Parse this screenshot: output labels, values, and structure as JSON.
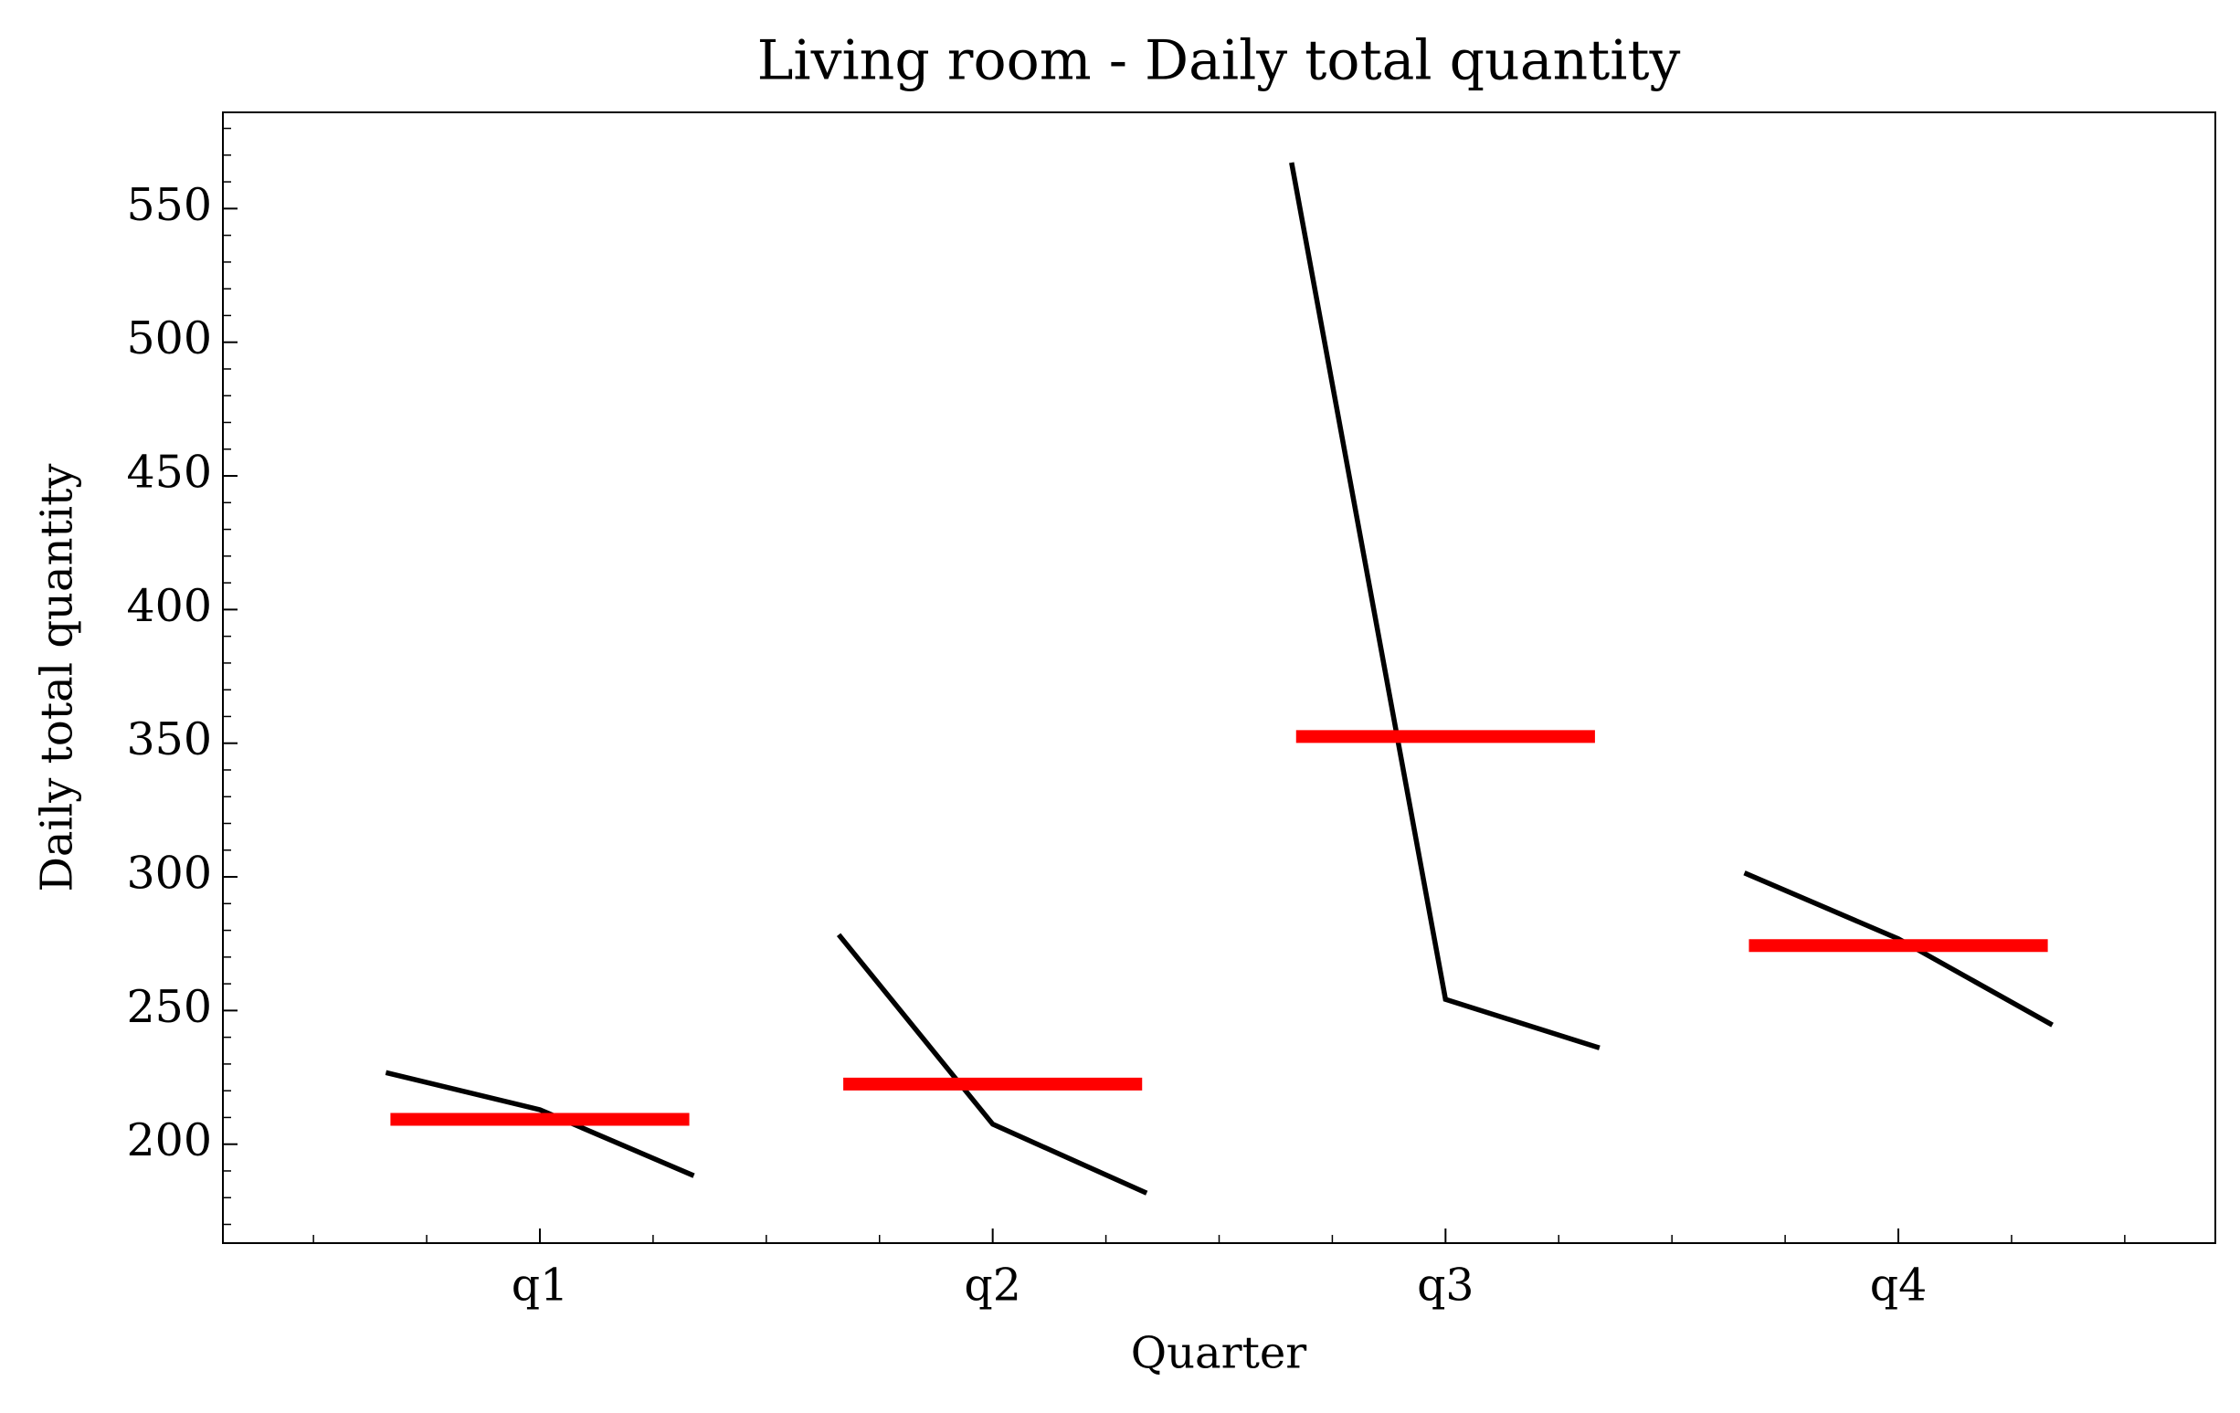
{
  "chart_data": {
    "type": "seasonal",
    "title": "Living room - Daily total quantity",
    "xlabel": "Quarter",
    "ylabel": "Daily total quantity",
    "categories": [
      "q1",
      "q2",
      "q3",
      "q4"
    ],
    "values": [
      [
        226.8,
        212.9,
        188.2
      ],
      [
        278.4,
        207.5,
        181.7
      ],
      [
        567.2,
        254.2,
        236.0
      ],
      [
        301.5,
        276.8,
        244.6
      ]
    ],
    "means": [
      209.3,
      222.5,
      352.5,
      274.3
    ],
    "line_color": "#000000",
    "mean_color": "#ff0000",
    "ylim": [
      163,
      586
    ],
    "yticks": [
      200,
      250,
      300,
      350,
      400,
      450,
      500,
      550
    ],
    "yminorticks": [
      170,
      180,
      190,
      210,
      220,
      230,
      240,
      260,
      270,
      280,
      290,
      310,
      320,
      330,
      340,
      360,
      370,
      380,
      390,
      410,
      420,
      430,
      440,
      460,
      470,
      480,
      490,
      510,
      520,
      530,
      540,
      560,
      570,
      580
    ]
  }
}
